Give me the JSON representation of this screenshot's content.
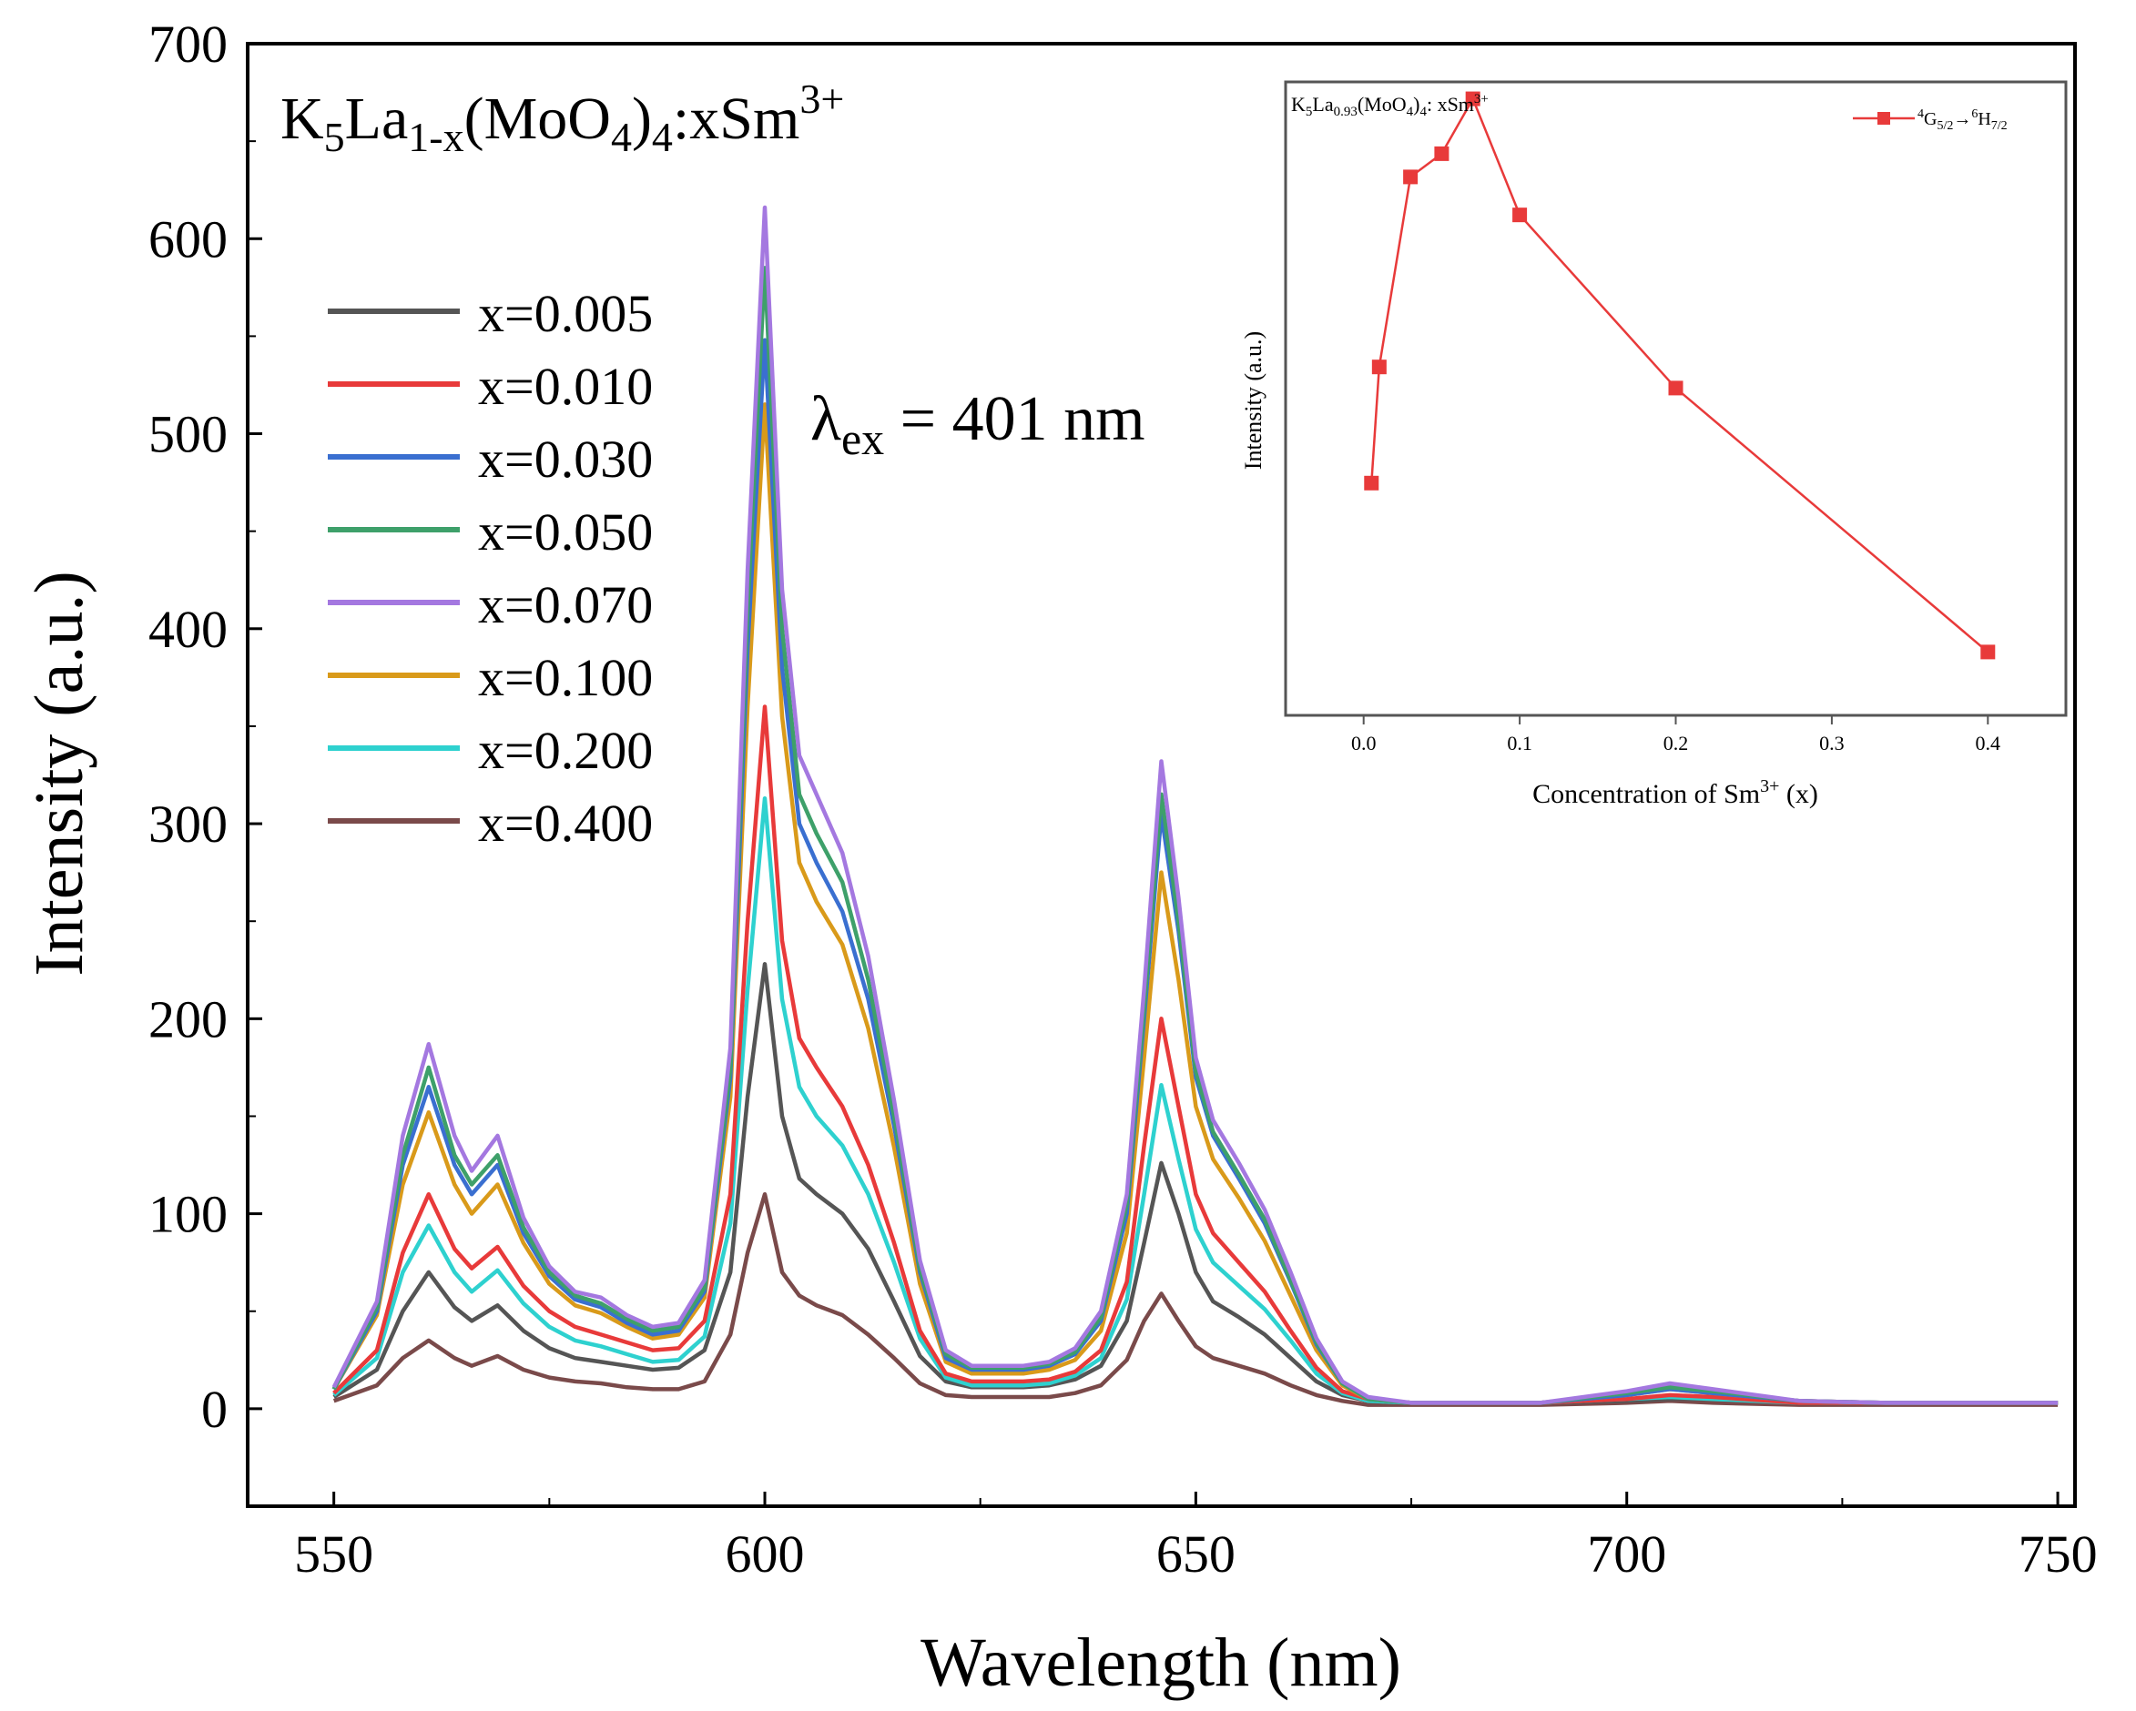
{
  "chart_data": [
    {
      "type": "line",
      "title": {
        "prefix": "K",
        "s1": "5",
        "mid": "La",
        "s2": "1-x",
        "mid2": "(MoO",
        "s3": "4",
        "mid3": ")",
        "s4": "4",
        "mid4": ":xSm",
        "sup": "3+"
      },
      "annotation": {
        "lambda": "λ",
        "sub": "ex",
        "text": " = 401 nm"
      },
      "xlabel": "Wavelength (nm)",
      "ylabel": "Intensity (a.u.)",
      "xlim": [
        540,
        752
      ],
      "ylim": [
        -50,
        700
      ],
      "xticks": [
        550,
        600,
        650,
        700,
        750
      ],
      "yticks": [
        0,
        100,
        200,
        300,
        400,
        500,
        600,
        700
      ],
      "legend_position": "upper-left",
      "x": [
        550,
        555,
        558,
        561,
        564,
        566,
        569,
        572,
        575,
        578,
        581,
        584,
        587,
        590,
        593,
        596,
        598,
        600,
        602,
        604,
        606,
        609,
        612,
        615,
        618,
        621,
        624,
        627,
        630,
        633,
        636,
        639,
        642,
        644,
        646,
        648,
        650,
        652,
        655,
        658,
        661,
        664,
        667,
        670,
        675,
        680,
        690,
        700,
        705,
        710,
        720,
        730,
        740,
        750
      ],
      "series": [
        {
          "name": "x=0.005",
          "color": "#555555",
          "values": [
            6,
            20,
            50,
            70,
            52,
            45,
            53,
            40,
            31,
            26,
            24,
            22,
            20,
            21,
            30,
            70,
            160,
            228,
            150,
            118,
            110,
            100,
            82,
            55,
            27,
            14,
            11,
            11,
            11,
            12,
            15,
            22,
            45,
            85,
            126,
            100,
            70,
            55,
            47,
            38,
            26,
            14,
            7,
            4,
            3,
            3,
            3,
            4,
            5,
            5,
            3,
            3,
            3,
            3
          ]
        },
        {
          "name": "x=0.010",
          "color": "#e83a3a",
          "values": [
            8,
            30,
            80,
            110,
            82,
            72,
            83,
            63,
            50,
            42,
            38,
            34,
            30,
            31,
            45,
            110,
            250,
            360,
            240,
            190,
            175,
            155,
            125,
            85,
            40,
            18,
            14,
            14,
            14,
            15,
            19,
            30,
            65,
            135,
            200,
            155,
            110,
            90,
            75,
            60,
            40,
            21,
            9,
            5,
            3,
            3,
            3,
            5,
            7,
            6,
            3,
            3,
            3,
            3
          ]
        },
        {
          "name": "x=0.030",
          "color": "#3a6fd0",
          "values": [
            10,
            50,
            125,
            165,
            125,
            110,
            125,
            90,
            68,
            56,
            52,
            44,
            38,
            40,
            60,
            170,
            390,
            548,
            380,
            300,
            280,
            255,
            210,
            145,
            70,
            26,
            20,
            20,
            20,
            22,
            28,
            45,
            100,
            200,
            305,
            245,
            170,
            140,
            118,
            95,
            65,
            33,
            13,
            5,
            3,
            3,
            3,
            7,
            10,
            8,
            4,
            3,
            3,
            3
          ]
        },
        {
          "name": "x=0.050",
          "color": "#3ea06a",
          "values": [
            10,
            52,
            130,
            175,
            130,
            115,
            130,
            93,
            70,
            58,
            54,
            46,
            40,
            42,
            62,
            175,
            410,
            585,
            400,
            315,
            295,
            270,
            220,
            150,
            72,
            28,
            21,
            21,
            21,
            23,
            29,
            47,
            105,
            205,
            315,
            250,
            173,
            142,
            120,
            97,
            66,
            34,
            13,
            5,
            3,
            3,
            3,
            8,
            11,
            9,
            4,
            3,
            3,
            3
          ]
        },
        {
          "name": "x=0.070",
          "color": "#a478e0",
          "values": [
            11,
            55,
            140,
            187,
            140,
            122,
            140,
            98,
            73,
            60,
            57,
            48,
            42,
            44,
            66,
            185,
            430,
            616,
            420,
            335,
            315,
            285,
            232,
            158,
            76,
            30,
            22,
            22,
            22,
            24,
            31,
            50,
            110,
            215,
            332,
            262,
            180,
            148,
            126,
            102,
            70,
            36,
            14,
            6,
            3,
            3,
            3,
            9,
            13,
            10,
            4,
            3,
            3,
            3
          ]
        },
        {
          "name": "x=0.100",
          "color": "#d99a1a",
          "values": [
            10,
            48,
            115,
            152,
            115,
            100,
            115,
            85,
            64,
            53,
            49,
            42,
            36,
            38,
            57,
            160,
            360,
            515,
            355,
            280,
            260,
            238,
            195,
            134,
            64,
            24,
            18,
            18,
            18,
            20,
            25,
            40,
            90,
            180,
            275,
            220,
            155,
            128,
            108,
            86,
            58,
            30,
            12,
            5,
            3,
            3,
            3,
            7,
            10,
            8,
            4,
            3,
            3,
            3
          ]
        },
        {
          "name": "x=0.200",
          "color": "#2ed1cf",
          "values": [
            7,
            26,
            70,
            94,
            70,
            60,
            71,
            54,
            42,
            35,
            32,
            28,
            24,
            25,
            37,
            95,
            215,
            313,
            210,
            165,
            150,
            135,
            110,
            75,
            36,
            16,
            12,
            12,
            12,
            13,
            17,
            26,
            56,
            110,
            166,
            128,
            92,
            75,
            63,
            51,
            35,
            18,
            8,
            4,
            3,
            3,
            3,
            5,
            6,
            5,
            3,
            3,
            3,
            3
          ]
        },
        {
          "name": "x=0.400",
          "color": "#7a4a4a",
          "values": [
            4,
            12,
            26,
            35,
            26,
            22,
            27,
            20,
            16,
            14,
            13,
            11,
            10,
            10,
            14,
            38,
            80,
            110,
            70,
            58,
            53,
            48,
            38,
            26,
            13,
            7,
            6,
            6,
            6,
            6,
            8,
            12,
            25,
            45,
            59,
            45,
            32,
            26,
            22,
            18,
            12,
            7,
            4,
            2,
            2,
            2,
            2,
            3,
            4,
            3,
            2,
            2,
            2,
            2
          ]
        }
      ]
    },
    {
      "type": "line",
      "title": {
        "prefix": "K",
        "s1": "5",
        "mid": "La",
        "s2": "0.93",
        "mid2": "(MoO",
        "s3": "4",
        "mid3": ")",
        "s4": "4",
        "mid4": ": xSm",
        "sup": "3+"
      },
      "xlabel": {
        "text": "Concentration of Sm",
        "sup": "3+",
        "tail": " (x)"
      },
      "ylabel": "Intensity (a.u.)",
      "xlim": [
        -0.05,
        0.45
      ],
      "xticks": [
        "0.0",
        "0.1",
        "0.2",
        "0.3",
        "0.4"
      ],
      "ylim": [
        350,
        650
      ],
      "legend_position": "top-right",
      "legend": {
        "a": "4",
        "b": "G",
        "c": "5/2",
        "arrow": "→",
        "d": "6",
        "e": "H",
        "f": "7/2"
      },
      "series": [
        {
          "name": "4G5/2→6H7/2",
          "color": "#e83a3a",
          "x": [
            0.005,
            0.01,
            0.03,
            0.05,
            0.07,
            0.1,
            0.2,
            0.4
          ],
          "values": [
            460,
            515,
            605,
            616,
            642,
            587,
            505,
            380
          ]
        }
      ]
    }
  ]
}
